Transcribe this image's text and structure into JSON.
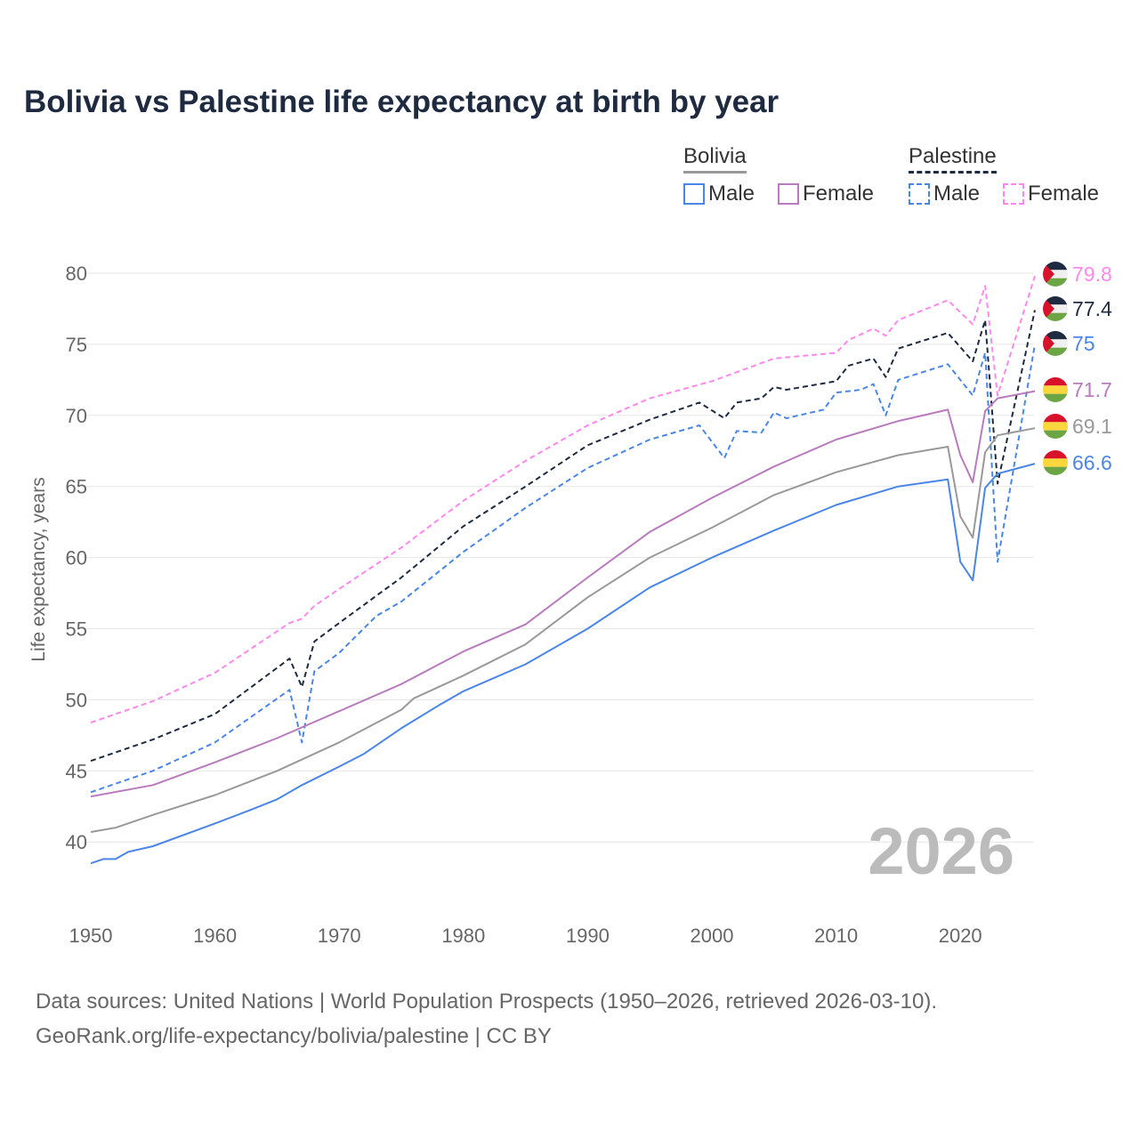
{
  "title": "Bolivia vs Palestine life expectancy at birth by year",
  "legend": {
    "bolivia": {
      "label": "Bolivia",
      "items": [
        "Male",
        "Female"
      ]
    },
    "palestine": {
      "label": "Palestine",
      "items": [
        "Male",
        "Female"
      ]
    }
  },
  "source": {
    "line1": "Data sources: United Nations | World Population Prospects (1950–2026, retrieved 2026-03-10).",
    "line2": "GeoRank.org/life-expectancy/bolivia/palestine | CC BY"
  },
  "chart_data": {
    "type": "line",
    "title": "Bolivia vs Palestine life expectancy at birth by year",
    "ylabel": "Life expectancy, years",
    "xlabel": "",
    "xlim": [
      1950,
      2026
    ],
    "ylim": [
      37.5,
      81
    ],
    "xticks": [
      1950,
      1960,
      1970,
      1980,
      1990,
      2000,
      2010,
      2020
    ],
    "yticks": [
      40,
      45,
      50,
      55,
      60,
      65,
      70,
      75,
      80
    ],
    "watermark": "2026",
    "grid": true,
    "legend_position": "top-right",
    "series": [
      {
        "name": "Palestine Female",
        "country": "Palestine",
        "color": "#ff88ee",
        "dash": true,
        "end_label": "79.8",
        "points": [
          [
            1950,
            48.4
          ],
          [
            1955,
            49.9
          ],
          [
            1960,
            51.9
          ],
          [
            1966,
            55.4
          ],
          [
            1967,
            55.7
          ],
          [
            1968,
            56.6
          ],
          [
            1970,
            57.8
          ],
          [
            1975,
            60.7
          ],
          [
            1980,
            64.0
          ],
          [
            1985,
            66.8
          ],
          [
            1990,
            69.3
          ],
          [
            1995,
            71.2
          ],
          [
            2000,
            72.4
          ],
          [
            2005,
            74.0
          ],
          [
            2010,
            74.4
          ],
          [
            2011,
            75.3
          ],
          [
            2013,
            76.1
          ],
          [
            2014,
            75.6
          ],
          [
            2015,
            76.7
          ],
          [
            2019,
            78.1
          ],
          [
            2021,
            76.4
          ],
          [
            2022,
            79.1
          ],
          [
            2023,
            71.4
          ],
          [
            2026,
            79.8
          ]
        ]
      },
      {
        "name": "Palestine",
        "country": "Palestine",
        "color": "#1d2a3f",
        "dash": true,
        "end_label": "77.4",
        "points": [
          [
            1950,
            45.7
          ],
          [
            1955,
            47.2
          ],
          [
            1960,
            49.0
          ],
          [
            1966,
            52.9
          ],
          [
            1967,
            50.9
          ],
          [
            1968,
            54.1
          ],
          [
            1970,
            55.4
          ],
          [
            1975,
            58.6
          ],
          [
            1980,
            62.2
          ],
          [
            1985,
            65.0
          ],
          [
            1990,
            67.9
          ],
          [
            1995,
            69.7
          ],
          [
            1999,
            70.9
          ],
          [
            2001,
            69.8
          ],
          [
            2002,
            70.9
          ],
          [
            2004,
            71.2
          ],
          [
            2005,
            72.0
          ],
          [
            2006,
            71.8
          ],
          [
            2010,
            72.4
          ],
          [
            2011,
            73.5
          ],
          [
            2013,
            74.0
          ],
          [
            2014,
            72.7
          ],
          [
            2015,
            74.7
          ],
          [
            2019,
            75.8
          ],
          [
            2021,
            73.8
          ],
          [
            2022,
            76.7
          ],
          [
            2023,
            65.2
          ],
          [
            2026,
            77.4
          ]
        ]
      },
      {
        "name": "Palestine Male",
        "country": "Palestine",
        "color": "#4a86e8",
        "dash": true,
        "end_label": "75",
        "points": [
          [
            1950,
            43.5
          ],
          [
            1955,
            45.0
          ],
          [
            1960,
            47.0
          ],
          [
            1966,
            50.7
          ],
          [
            1967,
            47.0
          ],
          [
            1968,
            52.0
          ],
          [
            1970,
            53.3
          ],
          [
            1973,
            55.9
          ],
          [
            1975,
            56.9
          ],
          [
            1980,
            60.4
          ],
          [
            1985,
            63.5
          ],
          [
            1990,
            66.3
          ],
          [
            1995,
            68.3
          ],
          [
            1999,
            69.3
          ],
          [
            2001,
            67.0
          ],
          [
            2002,
            68.9
          ],
          [
            2004,
            68.8
          ],
          [
            2005,
            70.2
          ],
          [
            2006,
            69.8
          ],
          [
            2009,
            70.4
          ],
          [
            2010,
            71.6
          ],
          [
            2012,
            71.8
          ],
          [
            2013,
            72.2
          ],
          [
            2014,
            70.0
          ],
          [
            2015,
            72.5
          ],
          [
            2019,
            73.6
          ],
          [
            2021,
            71.4
          ],
          [
            2022,
            74.4
          ],
          [
            2023,
            59.7
          ],
          [
            2026,
            75.0
          ]
        ]
      },
      {
        "name": "Bolivia Female",
        "country": "Bolivia",
        "color": "#b87bbd",
        "dash": false,
        "end_label": "71.7",
        "points": [
          [
            1950,
            43.2
          ],
          [
            1955,
            44.0
          ],
          [
            1960,
            45.6
          ],
          [
            1965,
            47.3
          ],
          [
            1970,
            49.2
          ],
          [
            1975,
            51.1
          ],
          [
            1980,
            53.4
          ],
          [
            1985,
            55.3
          ],
          [
            1990,
            58.6
          ],
          [
            1995,
            61.8
          ],
          [
            2000,
            64.2
          ],
          [
            2005,
            66.4
          ],
          [
            2010,
            68.3
          ],
          [
            2015,
            69.6
          ],
          [
            2019,
            70.4
          ],
          [
            2020,
            67.2
          ],
          [
            2021,
            65.3
          ],
          [
            2022,
            70.3
          ],
          [
            2023,
            71.2
          ],
          [
            2026,
            71.7
          ]
        ]
      },
      {
        "name": "Bolivia",
        "country": "Bolivia",
        "color": "#999999",
        "dash": false,
        "end_label": "69.1",
        "points": [
          [
            1950,
            40.7
          ],
          [
            1952,
            41.0
          ],
          [
            1955,
            41.9
          ],
          [
            1960,
            43.3
          ],
          [
            1965,
            45.0
          ],
          [
            1970,
            47.0
          ],
          [
            1975,
            49.3
          ],
          [
            1976,
            50.1
          ],
          [
            1980,
            51.7
          ],
          [
            1985,
            53.9
          ],
          [
            1990,
            57.2
          ],
          [
            1995,
            60.0
          ],
          [
            2000,
            62.1
          ],
          [
            2005,
            64.4
          ],
          [
            2010,
            66.0
          ],
          [
            2015,
            67.2
          ],
          [
            2019,
            67.8
          ],
          [
            2020,
            62.9
          ],
          [
            2021,
            61.4
          ],
          [
            2022,
            67.4
          ],
          [
            2023,
            68.6
          ],
          [
            2026,
            69.1
          ]
        ]
      },
      {
        "name": "Bolivia Male",
        "country": "Bolivia",
        "color": "#4a86e8",
        "dash": false,
        "end_label": "66.6",
        "points": [
          [
            1950,
            38.5
          ],
          [
            1951,
            38.8
          ],
          [
            1952,
            38.8
          ],
          [
            1953,
            39.3
          ],
          [
            1955,
            39.7
          ],
          [
            1960,
            41.3
          ],
          [
            1963,
            42.3
          ],
          [
            1965,
            43.0
          ],
          [
            1967,
            44.0
          ],
          [
            1970,
            45.3
          ],
          [
            1972,
            46.2
          ],
          [
            1975,
            48.0
          ],
          [
            1978,
            49.6
          ],
          [
            1980,
            50.6
          ],
          [
            1985,
            52.5
          ],
          [
            1990,
            55.0
          ],
          [
            1995,
            57.9
          ],
          [
            2000,
            60.0
          ],
          [
            2005,
            61.9
          ],
          [
            2010,
            63.7
          ],
          [
            2015,
            65.0
          ],
          [
            2019,
            65.5
          ],
          [
            2020,
            59.7
          ],
          [
            2021,
            58.4
          ],
          [
            2022,
            64.9
          ],
          [
            2023,
            65.9
          ],
          [
            2026,
            66.6
          ]
        ]
      }
    ]
  },
  "colors": {
    "male": "#4a86e8",
    "female_bolivia": "#b87bbd",
    "female_palestine": "#ff88ee",
    "palestine": "#1d2a3f",
    "bolivia": "#999999"
  }
}
